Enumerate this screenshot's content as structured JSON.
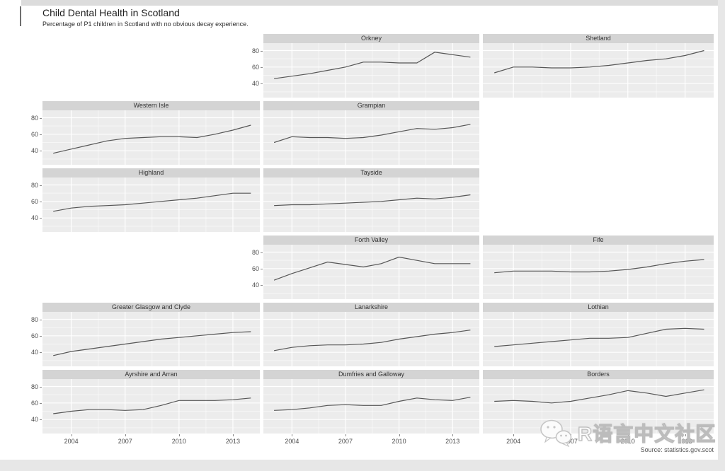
{
  "page": {
    "watermark_text": "R语言中文社区"
  },
  "chart_data": {
    "type": "line",
    "title": "Child Dental Health in Scotland",
    "subtitle": "Percentage of P1 children in Scotland with no obvious decay experience.",
    "source": "Source: statistics.gov.scot",
    "layout": "faceted small multiples, 3 columns x 6 rows, panels placed to mimic Scotland health-board geography; axis labels only on leftmost panel of each row and bottom of each column; light gray panels with white gridlines",
    "x": [
      2003,
      2004,
      2005,
      2006,
      2007,
      2008,
      2009,
      2010,
      2011,
      2012,
      2013,
      2014
    ],
    "x_ticks": [
      "2004",
      "2007",
      "2010",
      "2013"
    ],
    "x_tick_values": [
      2004,
      2007,
      2010,
      2013
    ],
    "y_ticks": [
      "80",
      "60",
      "40"
    ],
    "y_tick_values": [
      80,
      60,
      40
    ],
    "xlim": [
      2002.4,
      2014.5
    ],
    "ylim": [
      23,
      89
    ],
    "grid": true,
    "xlabel": "",
    "ylabel": "",
    "line_color": "#565656",
    "panel_bg": "#ececec",
    "strip_bg": "#d4d4d4",
    "series": [
      {
        "name": "Orkney",
        "row": 1,
        "col": 2,
        "values": [
          46,
          49,
          52,
          56,
          60,
          66,
          66,
          65,
          65,
          78,
          75,
          72
        ]
      },
      {
        "name": "Shetland",
        "row": 1,
        "col": 3,
        "values": [
          53,
          60,
          60,
          59,
          59,
          60,
          62,
          65,
          68,
          70,
          74,
          80
        ]
      },
      {
        "name": "Western Isle",
        "row": 2,
        "col": 1,
        "values": [
          37,
          42,
          47,
          52,
          55,
          56,
          57,
          57,
          56,
          60,
          65,
          71
        ]
      },
      {
        "name": "Grampian",
        "row": 2,
        "col": 2,
        "values": [
          50,
          57,
          56,
          56,
          55,
          56,
          59,
          63,
          67,
          66,
          68,
          72
        ]
      },
      {
        "name": "Highland",
        "row": 3,
        "col": 1,
        "values": [
          48,
          52,
          54,
          55,
          56,
          58,
          60,
          62,
          64,
          67,
          70,
          70
        ]
      },
      {
        "name": "Tayside",
        "row": 3,
        "col": 2,
        "values": [
          55,
          56,
          56,
          57,
          58,
          59,
          60,
          62,
          64,
          63,
          65,
          68
        ]
      },
      {
        "name": "Forth Valley",
        "row": 4,
        "col": 2,
        "values": [
          46,
          54,
          61,
          68,
          65,
          62,
          66,
          74,
          70,
          66,
          66,
          66
        ]
      },
      {
        "name": "Fife",
        "row": 4,
        "col": 3,
        "values": [
          55,
          57,
          57,
          57,
          56,
          56,
          57,
          59,
          62,
          66,
          69,
          71
        ]
      },
      {
        "name": "Greater Glasgow and Clyde",
        "row": 5,
        "col": 1,
        "values": [
          36,
          41,
          44,
          47,
          50,
          53,
          56,
          58,
          60,
          62,
          64,
          65
        ]
      },
      {
        "name": "Lanarkshire",
        "row": 5,
        "col": 2,
        "values": [
          42,
          46,
          48,
          49,
          49,
          50,
          52,
          56,
          59,
          62,
          64,
          67
        ]
      },
      {
        "name": "Lothian",
        "row": 5,
        "col": 3,
        "values": [
          47,
          49,
          51,
          53,
          55,
          57,
          57,
          58,
          63,
          68,
          69,
          68
        ]
      },
      {
        "name": "Ayrshire and Arran",
        "row": 6,
        "col": 1,
        "values": [
          47,
          50,
          52,
          52,
          51,
          52,
          57,
          63,
          63,
          63,
          64,
          66
        ]
      },
      {
        "name": "Dumfries and Galloway",
        "row": 6,
        "col": 2,
        "values": [
          51,
          52,
          54,
          57,
          58,
          57,
          57,
          62,
          66,
          64,
          63,
          67
        ]
      },
      {
        "name": "Borders",
        "row": 6,
        "col": 3,
        "values": [
          62,
          63,
          62,
          60,
          62,
          66,
          70,
          75,
          72,
          68,
          72,
          76
        ]
      }
    ]
  }
}
